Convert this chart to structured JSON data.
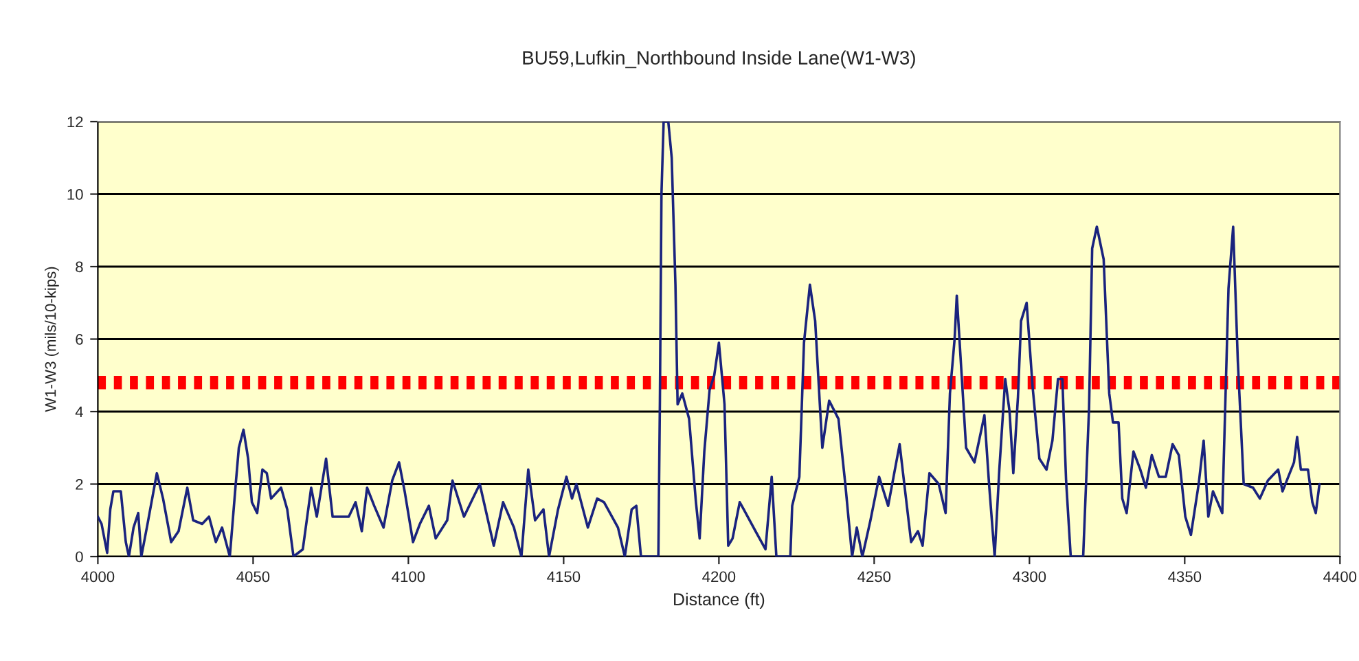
{
  "chart_data": {
    "type": "line",
    "title": "BU59,Lufkin_Northbound Inside Lane(W1-W3)",
    "xlabel": "Distance (ft)",
    "ylabel": "W1-W3 (mils/10-kips)",
    "series": [
      {
        "color": "#1a237e",
        "x": [
          4000,
          4001.2,
          4003,
          4004,
          4005,
          4007.4,
          4009,
          4010,
          4011.5,
          4013,
          4014,
          4016,
          4019,
          4021,
          4023.6,
          4026,
          4028.8,
          4030.7,
          4033.6,
          4035.8,
          4038,
          4040,
          4042.5,
          4044.4,
          4045.4,
          4046.9,
          4048.4,
          4049.6,
          4051.3,
          4053,
          4054.4,
          4055.8,
          4059,
          4061,
          4063,
          4066,
          4068.7,
          4070.5,
          4073.5,
          4075.6,
          4080.8,
          4083,
          4085,
          4086.7,
          4089,
          4092,
          4094.8,
          4097,
          4098.8,
          4101.5,
          4103.7,
          4106.6,
          4108.8,
          4112.5,
          4114.2,
          4117.9,
          4123,
          4127.5,
          4130.5,
          4134,
          4136.4,
          4138.6,
          4140.8,
          4143.5,
          4145.3,
          4148.2,
          4150.9,
          4152.7,
          4154.1,
          4157.8,
          4160.8,
          4163,
          4167.5,
          4169.7,
          4171.9,
          4173.4,
          4174.9,
          4180.5,
          4181,
          4181.5,
          4182.2,
          4183.7,
          4184.8,
          4186,
          4186.7,
          4188.2,
          4190.4,
          4192.6,
          4193.8,
          4195.3,
          4197,
          4198.5,
          4200,
          4201.8,
          4203,
          4204.4,
          4206.7,
          4208,
          4211.8,
          4215,
          4217,
          4218.5,
          4223,
          4223.6,
          4225.9,
          4227.4,
          4229.3,
          4231,
          4232.5,
          4233.3,
          4235.5,
          4238.5,
          4240.7,
          4242.9,
          4244.4,
          4246.2,
          4248.8,
          4251.6,
          4254.5,
          4258.2,
          4259.7,
          4261.9,
          4264.1,
          4265.6,
          4267.8,
          4270.8,
          4273,
          4274.4,
          4275.9,
          4276.6,
          4278.1,
          4279.6,
          4282.3,
          4285.5,
          4287,
          4288.8,
          4290.3,
          4292.2,
          4293.6,
          4294.8,
          4296.3,
          4297.3,
          4299.1,
          4301,
          4303.2,
          4305.5,
          4307.4,
          4309.2,
          4310.6,
          4311.8,
          4313.3,
          4317.3,
          4319.2,
          4320.2,
          4321.7,
          4323.9,
          4325.7,
          4326.9,
          4328.7,
          4329.9,
          4331.3,
          4333.5,
          4335.7,
          4337.5,
          4339.4,
          4341.7,
          4343.9,
          4346.1,
          4348.1,
          4350.2,
          4352,
          4354.5,
          4356.1,
          4357.6,
          4359.1,
          4362.1,
          4364.1,
          4365.6,
          4367.1,
          4369,
          4372,
          4374.2,
          4376.8,
          4380.1,
          4381.5,
          4385.2,
          4386.2,
          4387.4,
          4389.7,
          4391.1,
          4392.2,
          4393.4
        ],
        "values": [
          1.1,
          0.9,
          0.1,
          1.3,
          1.8,
          1.8,
          0.4,
          0,
          0.8,
          1.2,
          0,
          0.9,
          2.3,
          1.6,
          0.4,
          0.7,
          1.9,
          1.0,
          0.9,
          1.1,
          0.4,
          0.8,
          0,
          2.0,
          3.0,
          3.5,
          2.7,
          1.5,
          1.2,
          2.4,
          2.3,
          1.6,
          1.9,
          1.3,
          0,
          0.2,
          1.9,
          1.1,
          2.7,
          1.1,
          1.1,
          1.5,
          0.7,
          1.9,
          1.4,
          0.8,
          2.1,
          2.6,
          1.8,
          0.4,
          0.9,
          1.4,
          0.5,
          1.0,
          2.1,
          1.1,
          2.0,
          0.3,
          1.5,
          0.8,
          0,
          2.4,
          1.0,
          1.3,
          0,
          1.3,
          2.2,
          1.6,
          2.0,
          0.8,
          1.6,
          1.5,
          0.8,
          0,
          1.3,
          1.4,
          0,
          0,
          4.3,
          10.0,
          12,
          12,
          11,
          7.5,
          4.2,
          4.5,
          3.8,
          1.5,
          0.5,
          2.9,
          4.6,
          5.0,
          5.9,
          4.2,
          0.3,
          0.5,
          1.5,
          1.3,
          0.7,
          0.2,
          2.2,
          0,
          0,
          1.4,
          2.2,
          5.9,
          7.5,
          6.5,
          4.2,
          3.0,
          4.3,
          3.8,
          2.0,
          0,
          0.8,
          0,
          1.0,
          2.2,
          1.4,
          3.1,
          2.0,
          0.4,
          0.7,
          0.3,
          2.3,
          2.0,
          1.2,
          4.5,
          6.0,
          7.2,
          5.1,
          3.0,
          2.6,
          3.9,
          2.0,
          0,
          2.4,
          4.9,
          4.0,
          2.3,
          4.4,
          6.5,
          7.0,
          4.7,
          2.7,
          2.4,
          3.2,
          4.9,
          4.9,
          2.1,
          0,
          0,
          4.1,
          8.5,
          9.1,
          8.2,
          4.5,
          3.7,
          3.7,
          1.6,
          1.2,
          2.9,
          2.4,
          1.9,
          2.8,
          2.2,
          2.2,
          3.1,
          2.8,
          1.1,
          0.6,
          2.0,
          3.2,
          1.1,
          1.8,
          1.2,
          7.4,
          9.1,
          5.4,
          2.0,
          1.9,
          1.6,
          2.1,
          2.4,
          1.8,
          2.6,
          3.3,
          2.4,
          2.4,
          1.5,
          1.2,
          2.0
        ]
      }
    ],
    "ref_lines": [
      {
        "axis": "y",
        "value": 4.8,
        "color": "#ff0000",
        "line_style": "dotted"
      }
    ],
    "xlim": [
      4000,
      4400
    ],
    "xticks": [
      4000,
      4050,
      4100,
      4150,
      4200,
      4250,
      4300,
      4350,
      4400
    ],
    "ylim": [
      0,
      12
    ],
    "yticks": [
      0,
      2,
      4,
      6,
      8,
      10,
      12
    ],
    "grid": "y",
    "legend": false,
    "marker": "none",
    "line_style": "solid"
  }
}
